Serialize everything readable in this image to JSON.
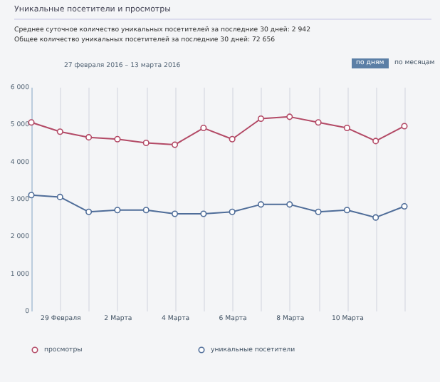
{
  "chart_data": {
    "type": "line",
    "title": "Уникальные посетители и просмотры",
    "subtitle": "27 февраля 2016 – 13 марта 2016",
    "annotations": [
      "Среднее суточное количество уникальных посетителей за последние 30 дней: 2 942",
      "Общее количество уникальных посетителей за последние 30 дней: 72 656",
      "по дням",
      "по месяцам"
    ],
    "categories": [
      null,
      "29 Февраля",
      null,
      "2 Марта",
      null,
      "4 Марта",
      null,
      "6 Марта",
      null,
      "8 Марта",
      null,
      "10 Марта",
      null,
      null
    ],
    "series": [
      {
        "name": "просмотры",
        "color": "#b34a66",
        "values": [
          5050,
          4800,
          4650,
          4600,
          4500,
          4450,
          4900,
          4600,
          5150,
          5200,
          5050,
          4900,
          4550,
          4950
        ]
      },
      {
        "name": "уникальные посетители",
        "color": "#4f6d99",
        "values": [
          3100,
          3050,
          2650,
          2700,
          2700,
          2600,
          2600,
          2650,
          2850,
          2850,
          2650,
          2700,
          2500,
          2800
        ]
      }
    ],
    "ylim": [
      0,
      6000
    ],
    "yticks": [
      {
        "value": 0,
        "label": "0"
      },
      {
        "value": 1000,
        "label": "1 000"
      },
      {
        "value": 2000,
        "label": "2 000"
      },
      {
        "value": 3000,
        "label": "3 000"
      },
      {
        "value": 4000,
        "label": "4 000"
      },
      {
        "value": 5000,
        "label": "5 000"
      },
      {
        "value": 6000,
        "label": "6 000"
      }
    ],
    "grid": "x",
    "legend": "bottom",
    "marker": "circle",
    "line_style": "solid"
  }
}
